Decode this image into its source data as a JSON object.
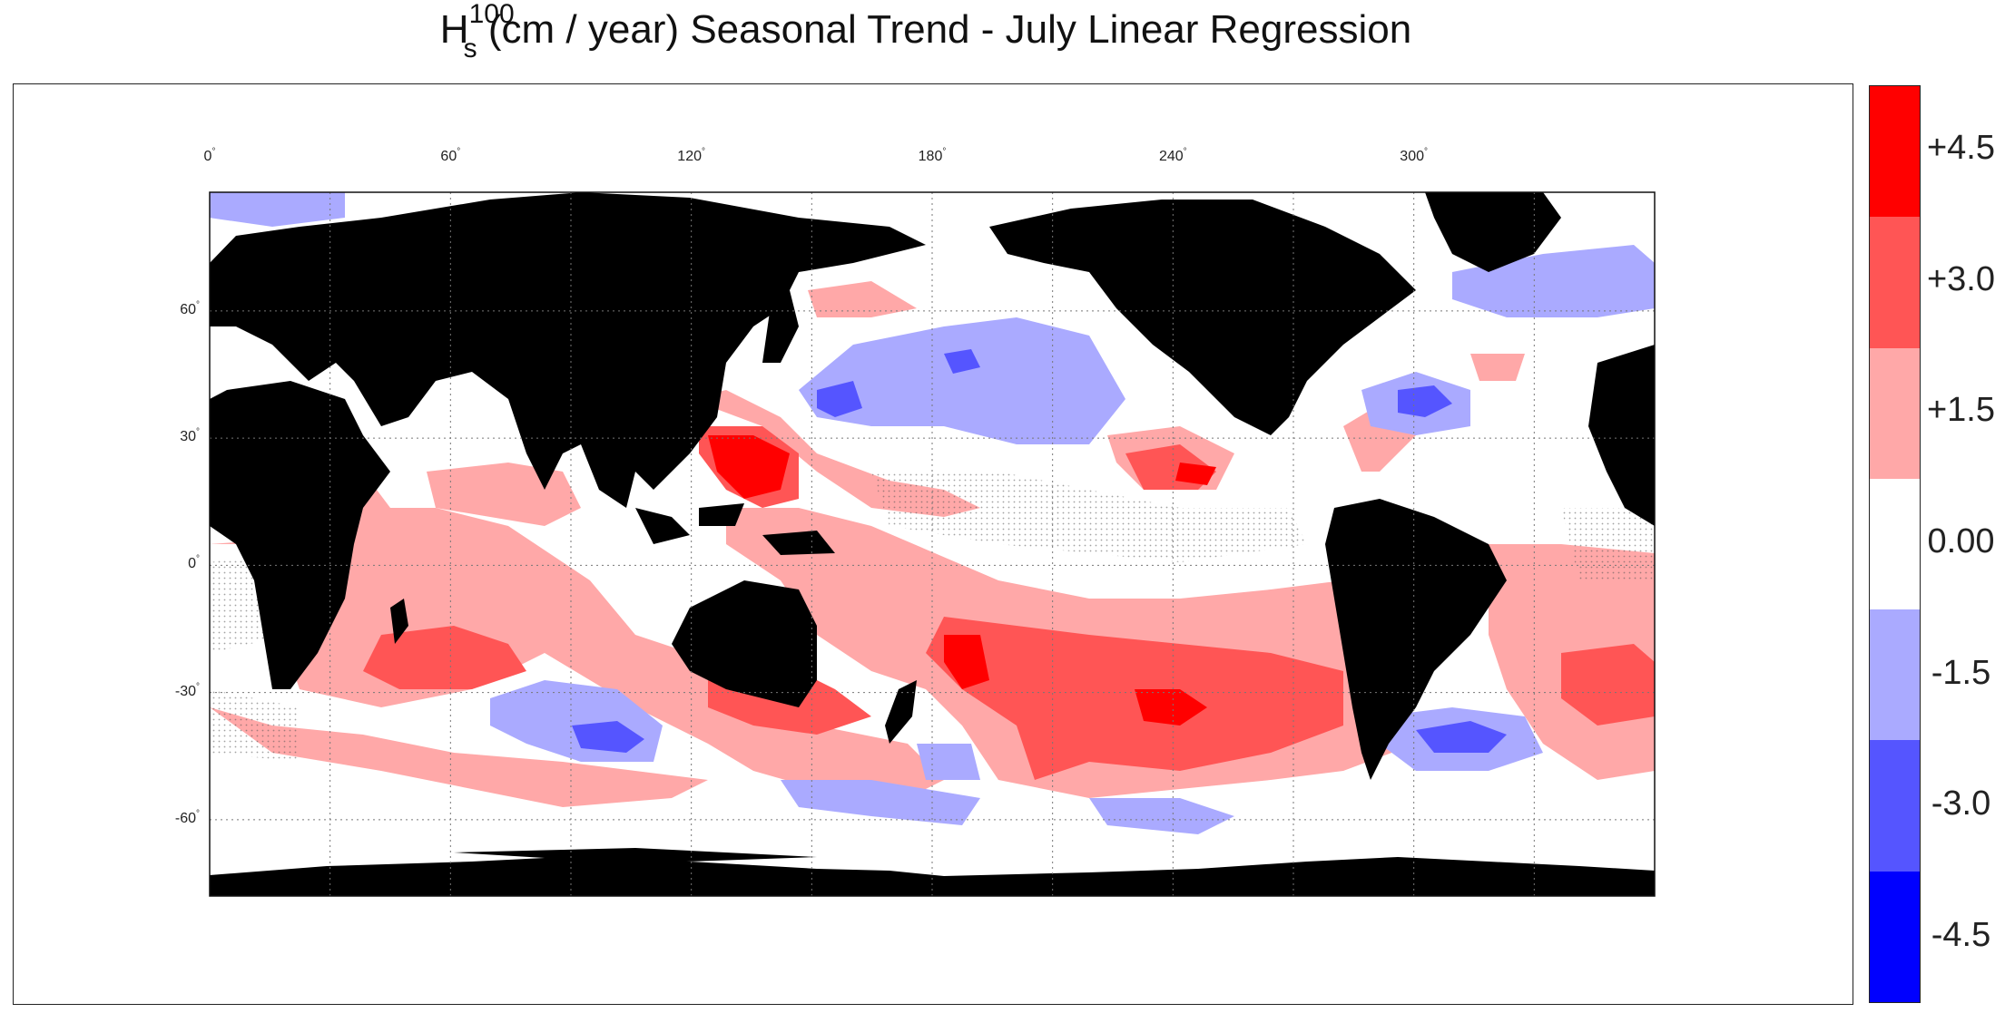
{
  "title": {
    "symbol": "H",
    "superscript": "100",
    "subscript": "s",
    "rest": " (cm / year)  Seasonal Trend - July  Linear Regression"
  },
  "map": {
    "lon_ticks": [
      {
        "value": 0,
        "label": "0"
      },
      {
        "value": 60,
        "label": "60"
      },
      {
        "value": 120,
        "label": "120"
      },
      {
        "value": 180,
        "label": "180"
      },
      {
        "value": 240,
        "label": "240"
      },
      {
        "value": 300,
        "label": "300"
      }
    ],
    "lat_ticks": [
      {
        "value": 60,
        "label": "60"
      },
      {
        "value": 30,
        "label": "30"
      },
      {
        "value": 0,
        "label": "0"
      },
      {
        "value": -30,
        "label": "-30"
      },
      {
        "value": -60,
        "label": "-60"
      }
    ],
    "degree_symbol": "°",
    "land_color": "#000000",
    "ocean_color": "#ffffff"
  },
  "colorbar": {
    "segments": [
      {
        "color": "#ff0000"
      },
      {
        "color": "#ff5555"
      },
      {
        "color": "#ffa8a8"
      },
      {
        "color": "#ffffff"
      },
      {
        "color": "#aaaaff"
      },
      {
        "color": "#5555ff"
      },
      {
        "color": "#0000ff"
      }
    ],
    "labels": [
      "+4.5",
      "+3.0",
      "+1.5",
      "0.00",
      "-1.5",
      "-3.0",
      "-4.5"
    ]
  }
}
